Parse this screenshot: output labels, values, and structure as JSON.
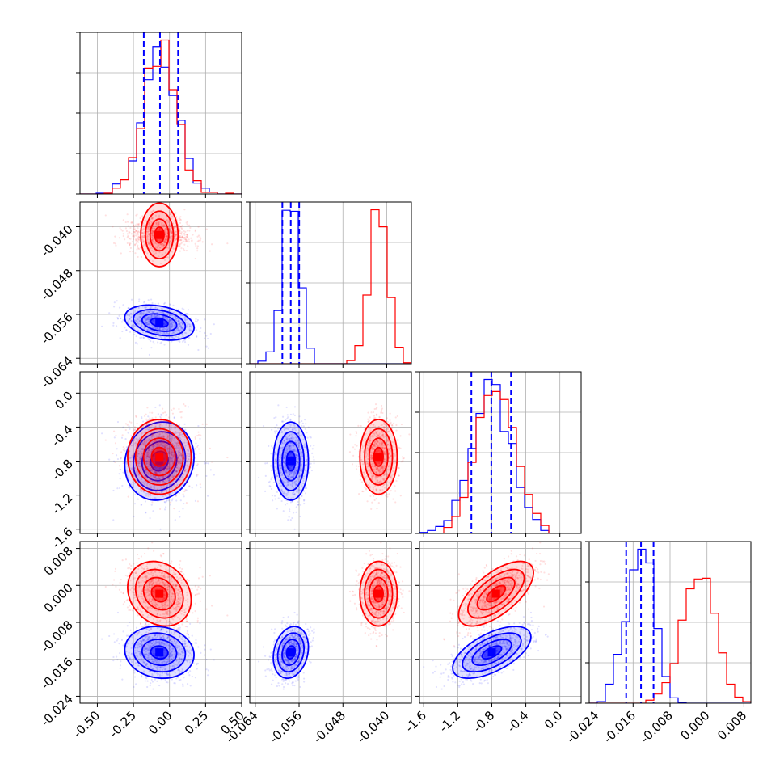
{
  "chart_data": {
    "type": "corner",
    "grid": true,
    "colors": {
      "series_a": "#0000ff",
      "series_b": "#ff0000"
    },
    "params": [
      {
        "ticks": [
          "-0.50",
          "-0.25",
          "0.00",
          "0.25",
          "0.50"
        ],
        "tick_values": [
          -0.5,
          -0.25,
          0.0,
          0.25,
          0.5
        ],
        "range": [
          -0.62,
          0.5
        ]
      },
      {
        "ticks": [
          "-0.064",
          "-0.056",
          "-0.048",
          "-0.040"
        ],
        "tick_values": [
          -0.064,
          -0.056,
          -0.048,
          -0.04
        ],
        "range": [
          -0.065,
          -0.0355
        ]
      },
      {
        "ticks": [
          "-1.6",
          "-1.2",
          "-0.8",
          "-0.4",
          "0.0"
        ],
        "tick_values": [
          -1.6,
          -1.2,
          -0.8,
          -0.4,
          0.0
        ],
        "range": [
          -1.65,
          0.25
        ]
      },
      {
        "ticks": [
          "-0.024",
          "-0.016",
          "-0.008",
          "0.000",
          "0.008"
        ],
        "tick_values": [
          -0.024,
          -0.016,
          -0.008,
          0.0,
          0.008
        ],
        "range": [
          -0.0255,
          0.0095
        ]
      }
    ],
    "series": [
      {
        "color_key": "series_a",
        "mean": [
          -0.07,
          -0.0575,
          -0.8,
          -0.0145
        ],
        "std": [
          0.12,
          0.0016,
          0.23,
          0.0028
        ],
        "corr": {
          "0-1": -0.3,
          "0-2": 0.1,
          "0-3": -0.1,
          "1-2": 0.0,
          "1-3": 0.2,
          "2-3": 0.6
        },
        "quantiles_shown": true
      },
      {
        "color_key": "series_b",
        "mean": [
          -0.07,
          -0.0415,
          -0.75,
          -0.0018
        ],
        "std": [
          0.11,
          0.0017,
          0.22,
          0.0035
        ],
        "corr": {
          "0-1": 0.0,
          "0-2": 0.0,
          "0-3": -0.2,
          "1-2": 0.0,
          "1-3": 0.0,
          "2-3": 0.65
        },
        "quantiles_shown": false
      }
    ],
    "quantiles": [
      0.16,
      0.5,
      0.84
    ]
  }
}
